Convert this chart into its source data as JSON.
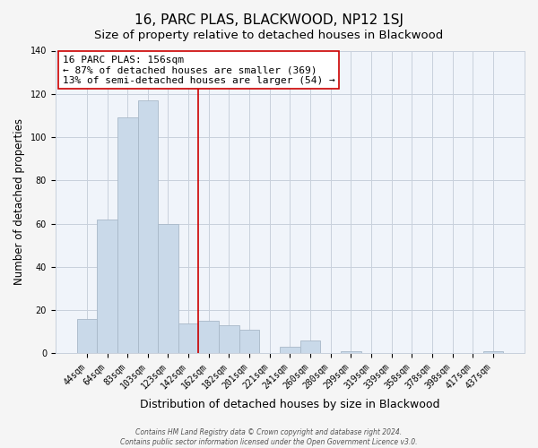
{
  "title": "16, PARC PLAS, BLACKWOOD, NP12 1SJ",
  "subtitle": "Size of property relative to detached houses in Blackwood",
  "xlabel": "Distribution of detached houses by size in Blackwood",
  "ylabel": "Number of detached properties",
  "bar_labels": [
    "44sqm",
    "64sqm",
    "83sqm",
    "103sqm",
    "123sqm",
    "142sqm",
    "162sqm",
    "182sqm",
    "201sqm",
    "221sqm",
    "241sqm",
    "260sqm",
    "280sqm",
    "299sqm",
    "319sqm",
    "339sqm",
    "358sqm",
    "378sqm",
    "398sqm",
    "417sqm",
    "437sqm"
  ],
  "bar_values": [
    16,
    62,
    109,
    117,
    60,
    14,
    15,
    13,
    11,
    0,
    3,
    6,
    0,
    1,
    0,
    0,
    0,
    0,
    0,
    0,
    1
  ],
  "bar_color": "#c9d9e9",
  "bar_edge_color": "#a8b8c8",
  "vline_x_index": 5.5,
  "vline_color": "#cc0000",
  "ylim": [
    0,
    140
  ],
  "yticks": [
    0,
    20,
    40,
    60,
    80,
    100,
    120,
    140
  ],
  "annotation_title": "16 PARC PLAS: 156sqm",
  "annotation_line1": "← 87% of detached houses are smaller (369)",
  "annotation_line2": "13% of semi-detached houses are larger (54) →",
  "annotation_box_facecolor": "#ffffff",
  "annotation_box_edgecolor": "#cc0000",
  "footer_line1": "Contains HM Land Registry data © Crown copyright and database right 2024.",
  "footer_line2": "Contains public sector information licensed under the Open Government Licence v3.0.",
  "fig_facecolor": "#f5f5f5",
  "plot_facecolor": "#f0f4fa",
  "grid_color": "#c8d0dc",
  "title_fontsize": 11,
  "subtitle_fontsize": 9.5,
  "xlabel_fontsize": 9,
  "ylabel_fontsize": 8.5,
  "tick_fontsize": 7,
  "annotation_fontsize": 8,
  "footer_fontsize": 5.5
}
